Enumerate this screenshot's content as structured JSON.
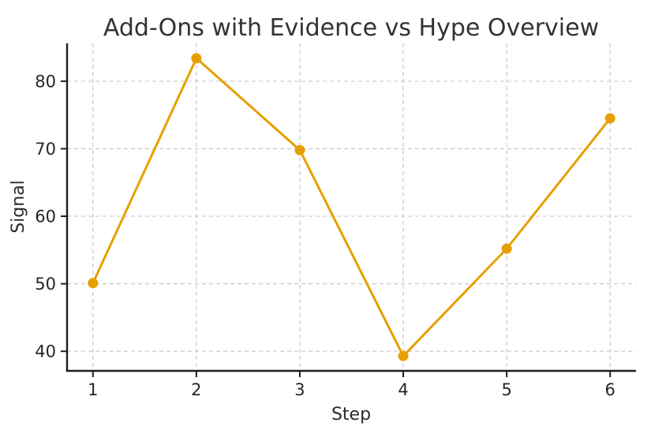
{
  "chart_data": {
    "type": "line",
    "title": "Add-Ons with Evidence vs Hype Overview",
    "xlabel": "Step",
    "ylabel": "Signal",
    "x": [
      1,
      2,
      3,
      4,
      5,
      6
    ],
    "series": [
      {
        "name": "Signal",
        "values": [
          50.1,
          83.4,
          69.8,
          39.3,
          55.2,
          74.5
        ]
      }
    ],
    "xticks": [
      1,
      2,
      3,
      4,
      5,
      6
    ],
    "yticks": [
      40,
      50,
      60,
      70,
      80
    ],
    "xlim": [
      0.75,
      6.25
    ],
    "ylim": [
      37.1,
      85.6
    ],
    "grid": true,
    "grid_style": "dashed",
    "legend": "none",
    "colors": {
      "line": "#E69F00",
      "marker": "#E69F00",
      "grid": "#c9c9c9",
      "spine": "#1f1f1f",
      "title_text": "#333333",
      "tick_text": "#262626",
      "background": "#ffffff"
    }
  }
}
